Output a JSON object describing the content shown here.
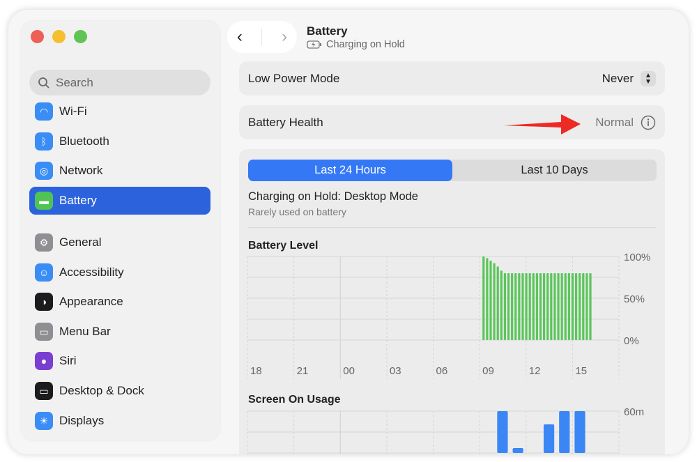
{
  "window": {
    "controls": {
      "close": "#ee5f57",
      "minimize": "#f5bf2f",
      "zoom": "#5fc453"
    }
  },
  "sidebar": {
    "search_placeholder": "Search",
    "items": [
      {
        "label": "Wi-Fi",
        "icon": "wifi-icon",
        "color": "#3a8df5"
      },
      {
        "label": "Bluetooth",
        "icon": "bluetooth-icon",
        "color": "#3a8df5"
      },
      {
        "label": "Network",
        "icon": "globe-icon",
        "color": "#3a8df5"
      },
      {
        "label": "Battery",
        "icon": "battery-icon",
        "color": "#4fc455",
        "selected": true
      },
      {
        "label": "General",
        "icon": "gear-icon",
        "color": "#8e8e93"
      },
      {
        "label": "Accessibility",
        "icon": "accessibility-icon",
        "color": "#3a8df5"
      },
      {
        "label": "Appearance",
        "icon": "appearance-icon",
        "color": "#1c1c1e"
      },
      {
        "label": "Menu Bar",
        "icon": "menu-bar-icon",
        "color": "#8e8e93"
      },
      {
        "label": "Siri",
        "icon": "siri-icon",
        "color": "#7a3fd0"
      },
      {
        "label": "Desktop & Dock",
        "icon": "dock-icon",
        "color": "#1c1c1e"
      },
      {
        "label": "Displays",
        "icon": "sun-icon",
        "color": "#3a8df5"
      }
    ]
  },
  "header": {
    "title": "Battery",
    "subtitle": "Charging on Hold"
  },
  "low_power": {
    "label": "Low Power Mode",
    "value": "Never"
  },
  "health": {
    "label": "Battery Health",
    "value": "Normal"
  },
  "tabs": [
    "Last 24 Hours",
    "Last 10 Days"
  ],
  "status": {
    "title": "Charging on Hold: Desktop Mode",
    "detail": "Rarely used on battery"
  },
  "chart_data": [
    {
      "type": "bar",
      "title": "Battery Level",
      "x_ticks": [
        "18",
        "21",
        "00",
        "03",
        "06",
        "09",
        "12",
        "15"
      ],
      "y_ticks": [
        "100%",
        "50%",
        "0%"
      ],
      "ylim": [
        0,
        100
      ],
      "color": "#5ac65a",
      "values": [
        100,
        98,
        95,
        92,
        88,
        83,
        80,
        80,
        80,
        80,
        80,
        80,
        80,
        80,
        80,
        80,
        80,
        80,
        80,
        80,
        80,
        80,
        80,
        80,
        80,
        80,
        80,
        80,
        80,
        80,
        80
      ],
      "start_hour": 9.25,
      "step_hours": 0.23
    },
    {
      "type": "bar",
      "title": "Screen On Usage",
      "y_ticks": [
        "60m"
      ],
      "ylim": [
        0,
        60
      ],
      "color": "#3a86f4",
      "hours": [
        10,
        11,
        13,
        14,
        15
      ],
      "values": [
        60,
        7,
        41,
        60,
        60
      ]
    }
  ],
  "annotation": {
    "type": "arrow",
    "color": "#ee2a24"
  }
}
